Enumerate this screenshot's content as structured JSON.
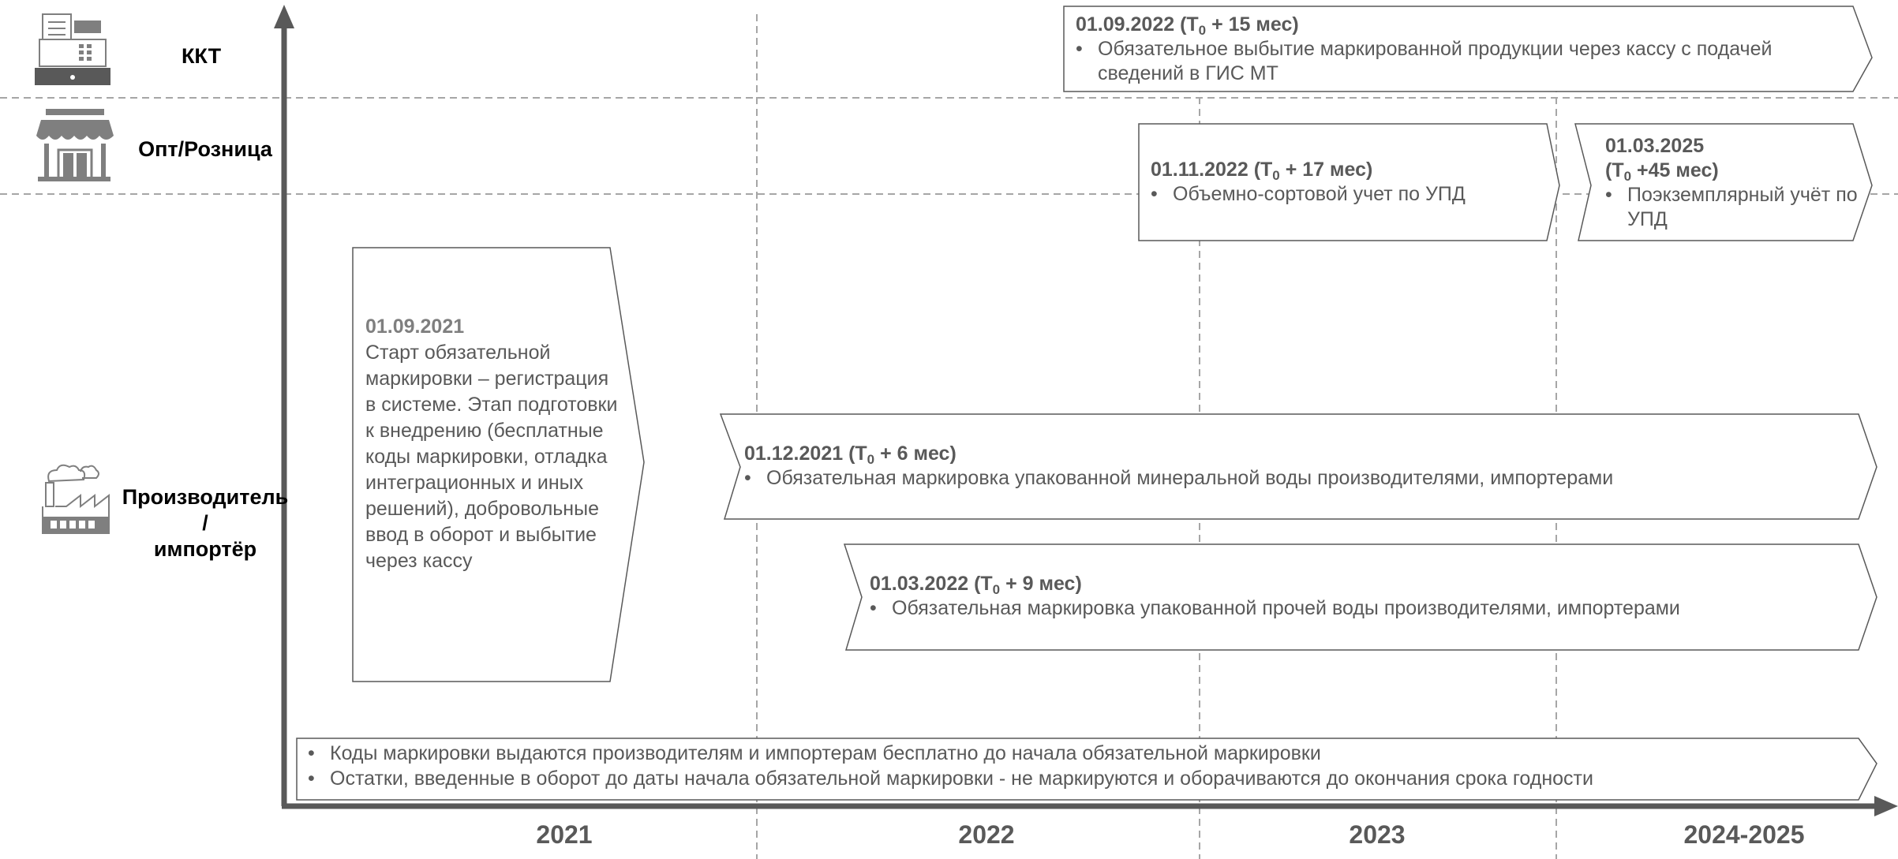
{
  "rows": {
    "kkt": "ККТ",
    "wholesale": "Опт/Розница",
    "producer": [
      "Производитель",
      "/",
      "импортёр"
    ]
  },
  "years": [
    "2021",
    "2022",
    "2023",
    "2024-2025"
  ],
  "events": {
    "kkt_2022": {
      "date": "01.09.2022 (T",
      "sub": "0",
      "offset": " + 15 мес)",
      "text": "Обязательное выбытие маркированной продукции через кассу с подачей сведений в ГИС МТ"
    },
    "upd_2022": {
      "date": "01.11.2022 (T",
      "sub": "0",
      "offset": " + 17 мес)",
      "text": "Объемно-сортовой учет по УПД"
    },
    "upd_2025": {
      "date": "01.03.2025",
      "date2": "(T",
      "sub": "0",
      "offset": " +45 мес)",
      "text": "Поэкземплярный учёт по УПД"
    },
    "start_2021": {
      "date": "01.09.2021",
      "text": "Старт обязательной маркировки – регистрация в системе. Этап подготовки к внедрению (бесплатные коды маркировки, отладка интеграционных и иных решений), добровольные ввод в оборот и выбытие через кассу"
    },
    "mineral_2021": {
      "date": "01.12.2021 (T",
      "sub": "0",
      "offset": " + 6 мес)",
      "text": "Обязательная маркировка упакованной минеральной воды производителями, импортерами"
    },
    "other_2022": {
      "date": "01.03.2022 (T",
      "sub": "0",
      "offset": " + 9 мес)",
      "text": "Обязательная маркировка упакованной прочей воды производителями, импортерами"
    }
  },
  "notes": [
    "Коды маркировки выдаются производителям и импортерам бесплатно до начала обязательной маркировки",
    "Остатки, введенные в оборот до даты начала обязательной маркировки - не маркируются и оборачиваются до окончания срока годности"
  ],
  "icons": [
    "cash-register-icon",
    "store-icon",
    "factory-icon"
  ],
  "colors": {
    "axis": "#595959",
    "text": "#595959",
    "label": "#000000",
    "grid": "#a6a6a6"
  }
}
